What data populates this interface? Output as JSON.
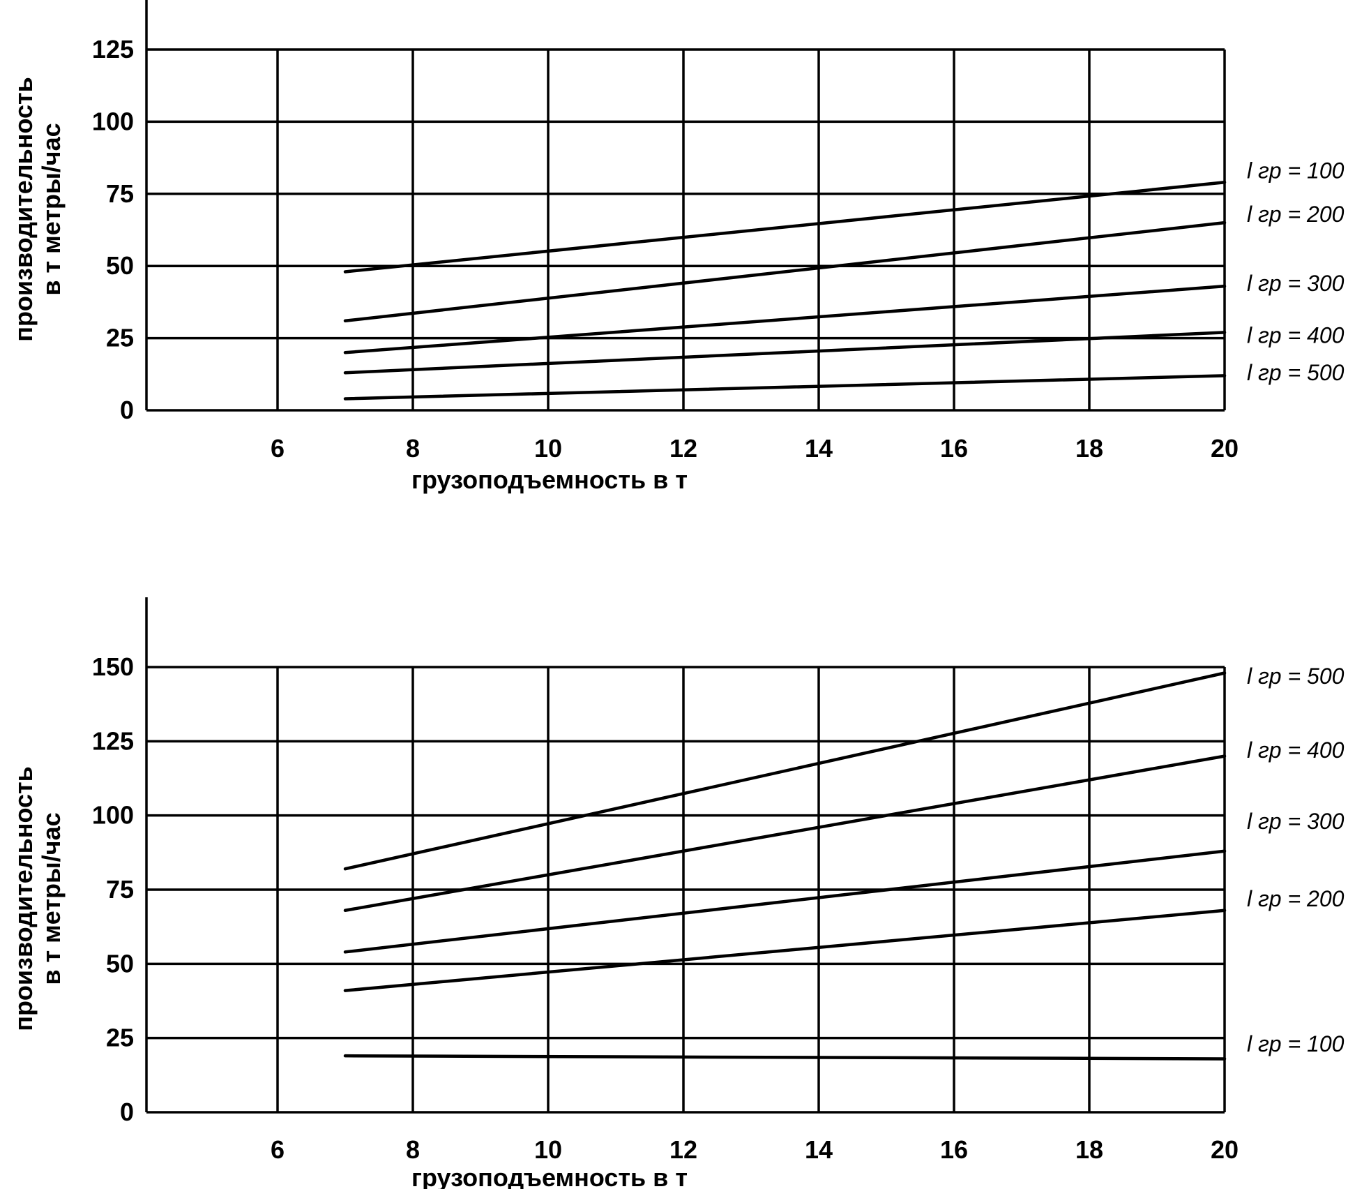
{
  "page": {
    "background": "#ffffff",
    "ink_color": "#000000"
  },
  "chart_data": [
    {
      "type": "line",
      "position": "top",
      "title": "",
      "xlabel": "грузоподъемность в т",
      "ylabel_lines": [
        "производительность",
        "в т метры/час"
      ],
      "xlim": [
        4,
        20
      ],
      "ylim": [
        0,
        125
      ],
      "xticks": [
        6,
        8,
        10,
        12,
        14,
        16,
        18,
        20
      ],
      "yticks": [
        0,
        25,
        50,
        75,
        100,
        125
      ],
      "grid": true,
      "legend_position": "right-outside",
      "series": [
        {
          "name": "l гр = 100",
          "x": [
            7,
            20
          ],
          "y": [
            48,
            79
          ],
          "label_y": 83
        },
        {
          "name": "l гр = 200",
          "x": [
            7,
            20
          ],
          "y": [
            31,
            65
          ],
          "label_y": 68
        },
        {
          "name": "l гр = 300",
          "x": [
            7,
            20
          ],
          "y": [
            20,
            43
          ],
          "label_y": 44
        },
        {
          "name": "l гр = 400",
          "x": [
            7,
            20
          ],
          "y": [
            13,
            27
          ],
          "label_y": 26
        },
        {
          "name": "l гр = 500",
          "x": [
            7,
            20
          ],
          "y": [
            4,
            12
          ],
          "label_y": 13
        }
      ]
    },
    {
      "type": "line",
      "position": "bottom",
      "title": "",
      "xlabel": "грузоподъемность в т",
      "ylabel_lines": [
        "производительность",
        "в т метры/час"
      ],
      "xlim": [
        4,
        20
      ],
      "ylim": [
        0,
        150
      ],
      "xticks": [
        6,
        8,
        10,
        12,
        14,
        16,
        18,
        20
      ],
      "yticks": [
        0,
        25,
        50,
        75,
        100,
        125,
        150
      ],
      "grid": true,
      "legend_position": "right-outside",
      "series": [
        {
          "name": "l гр = 500",
          "x": [
            7,
            20
          ],
          "y": [
            82,
            148
          ],
          "label_y": 147
        },
        {
          "name": "l гр = 400",
          "x": [
            7,
            20
          ],
          "y": [
            68,
            120
          ],
          "label_y": 122
        },
        {
          "name": "l гр = 300",
          "x": [
            7,
            20
          ],
          "y": [
            54,
            88
          ],
          "label_y": 98
        },
        {
          "name": "l гр = 200",
          "x": [
            7,
            20
          ],
          "y": [
            41,
            68
          ],
          "label_y": 72
        },
        {
          "name": "l гр = 100",
          "x": [
            7,
            20
          ],
          "y": [
            19,
            18
          ],
          "label_y": 23
        }
      ]
    }
  ]
}
